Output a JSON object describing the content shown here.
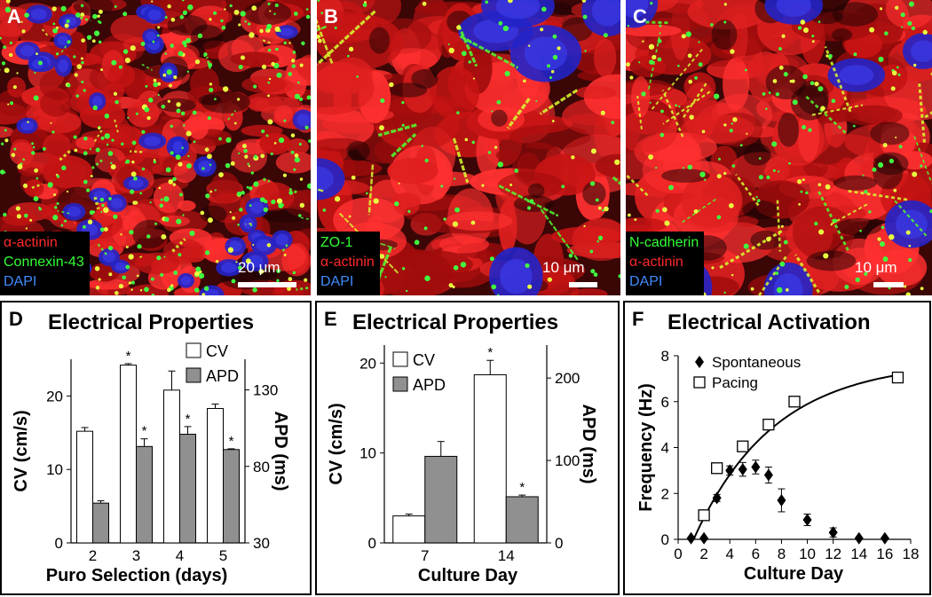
{
  "micrographs": [
    {
      "letter": "A",
      "stains": [
        {
          "text": "α-actinin",
          "color": "#ff2a2a"
        },
        {
          "text": "Connexin-43",
          "color": "#33ff33"
        },
        {
          "text": "DAPI",
          "color": "#3f8bff"
        }
      ],
      "scale_label": "20 μm"
    },
    {
      "letter": "B",
      "stains": [
        {
          "text": "ZO-1",
          "color": "#33ff33"
        },
        {
          "text": "α-actinin",
          "color": "#ff2a2a"
        },
        {
          "text": "DAPI",
          "color": "#3f8bff"
        }
      ],
      "scale_label": "10 μm"
    },
    {
      "letter": "C",
      "stains": [
        {
          "text": "N-cadherin",
          "color": "#33ff33"
        },
        {
          "text": "α-actinin",
          "color": "#ff2a2a"
        },
        {
          "text": "DAPI",
          "color": "#3f8bff"
        }
      ],
      "scale_label": "10 μm"
    }
  ],
  "chart_data": [
    {
      "letter": "D",
      "type": "bar",
      "title": "Electrical Properties",
      "xlabel": "Puro Selection (days)",
      "ylabel": "CV (cm/s)",
      "y2label": "APD (ms)",
      "categories": [
        "2",
        "3",
        "4",
        "5"
      ],
      "ylim": [
        0,
        25
      ],
      "yticks": [
        "0",
        "10",
        "20"
      ],
      "y2lim": [
        30,
        150
      ],
      "y2ticks": [
        "30",
        "80",
        "130"
      ],
      "series": [
        {
          "name": "CV",
          "axis": "left",
          "color": "#ffffff",
          "values": [
            15.2,
            24.2,
            20.8,
            18.3
          ],
          "errors": [
            0.5,
            0.2,
            2.6,
            0.6
          ],
          "sig": [
            false,
            true,
            false,
            false
          ]
        },
        {
          "name": "APD",
          "axis": "right",
          "color": "#909090",
          "values": [
            56,
            93,
            101,
            91
          ],
          "errors": [
            1.5,
            5,
            5,
            0.5
          ],
          "sig": [
            false,
            true,
            true,
            true
          ]
        }
      ],
      "sig_mark": "*"
    },
    {
      "letter": "E",
      "type": "bar",
      "title": "Electrical Properties",
      "xlabel": "Culture Day",
      "ylabel": "CV (cm/s)",
      "y2label": "APD (ms)",
      "categories": [
        "7",
        "14"
      ],
      "ylim": [
        0,
        22
      ],
      "yticks": [
        "0",
        "10",
        "20"
      ],
      "y2lim": [
        0,
        240
      ],
      "y2ticks": [
        "0",
        "100",
        "200"
      ],
      "series": [
        {
          "name": "CV",
          "axis": "left",
          "color": "#ffffff",
          "values": [
            3.0,
            18.7
          ],
          "errors": [
            0.2,
            1.6
          ],
          "sig": [
            false,
            true
          ]
        },
        {
          "name": "APD",
          "axis": "right",
          "color": "#909090",
          "values": [
            105,
            56
          ],
          "errors": [
            18,
            2
          ],
          "sig": [
            false,
            true
          ]
        }
      ],
      "sig_mark": "*"
    },
    {
      "letter": "F",
      "type": "scatter",
      "title": "Electrical Activation",
      "xlabel": "Culture Day",
      "ylabel": "Frequency (Hz)",
      "xlim": [
        0,
        18
      ],
      "xticks": [
        "0",
        "2",
        "4",
        "6",
        "8",
        "10",
        "12",
        "14",
        "16",
        "18"
      ],
      "ylim": [
        0,
        8
      ],
      "yticks": [
        "0",
        "2",
        "4",
        "6",
        "8"
      ],
      "series": [
        {
          "name": "Spontaneous",
          "marker": "diamond",
          "x": [
            1,
            2,
            3,
            4,
            5,
            6,
            7,
            8,
            10,
            12,
            14,
            16
          ],
          "y": [
            0.05,
            0.05,
            1.8,
            3.0,
            3.05,
            3.15,
            2.8,
            1.7,
            0.85,
            0.3,
            0.05,
            0.05
          ],
          "errors": [
            0,
            0,
            0.15,
            0.2,
            0.3,
            0.3,
            0.35,
            0.5,
            0.25,
            0.2,
            0,
            0
          ]
        },
        {
          "name": "Pacing",
          "marker": "square",
          "x": [
            2,
            3,
            5,
            7,
            9,
            17
          ],
          "y": [
            1.05,
            3.1,
            4.05,
            5.0,
            6.0,
            7.05
          ]
        }
      ],
      "fit_curve": true
    }
  ]
}
